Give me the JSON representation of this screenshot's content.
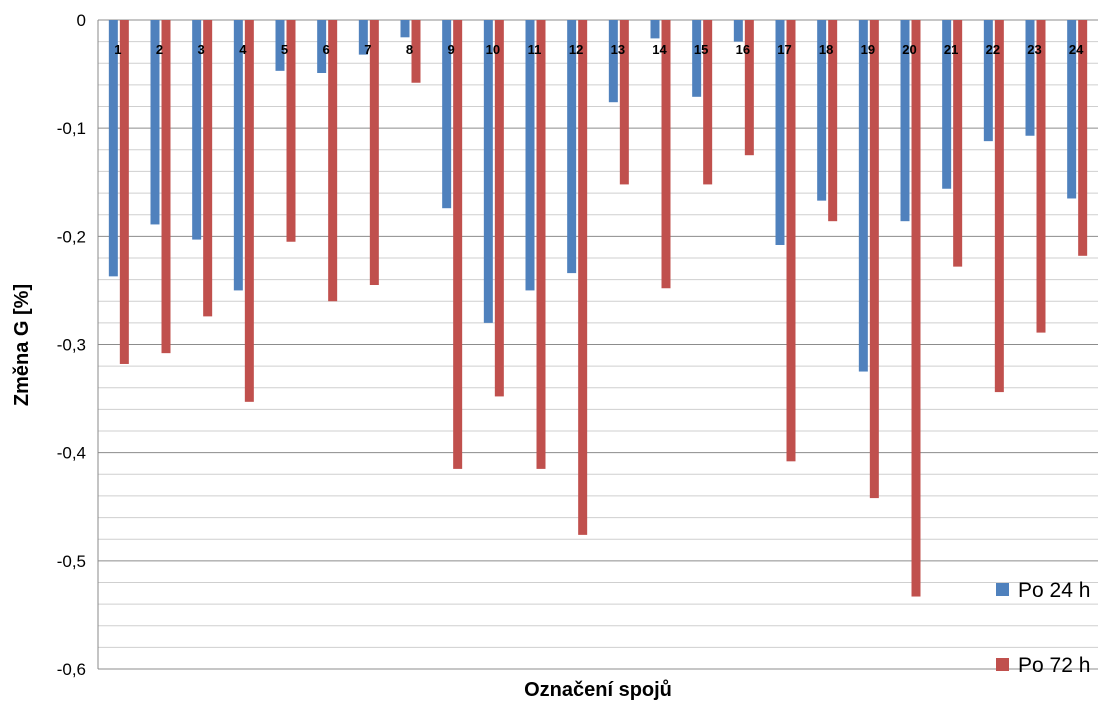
{
  "chart_data": {
    "type": "bar",
    "xlabel": "Označení spojů",
    "ylabel": "Změna G [%]",
    "ylim": [
      -0.6,
      0
    ],
    "yticks": [
      0,
      -0.1,
      -0.2,
      -0.3,
      -0.4,
      -0.5,
      -0.6
    ],
    "ytick_labels": [
      "0",
      "-0,1",
      "-0,2",
      "-0,3",
      "-0,4",
      "-0,5",
      "-0,6"
    ],
    "grid": true,
    "legend_position": "bottom-right",
    "categories": [
      "1",
      "2",
      "3",
      "4",
      "5",
      "6",
      "7",
      "8",
      "9",
      "10",
      "11",
      "12",
      "13",
      "14",
      "15",
      "16",
      "17",
      "18",
      "19",
      "20",
      "21",
      "22",
      "23",
      "24"
    ],
    "series": [
      {
        "name": "Po 24 h",
        "color": "#4F81BD",
        "values": [
          -0.237,
          -0.189,
          -0.203,
          -0.25,
          -0.047,
          -0.049,
          -0.032,
          -0.016,
          -0.174,
          -0.28,
          -0.25,
          -0.234,
          -0.076,
          -0.017,
          -0.071,
          -0.02,
          -0.208,
          -0.167,
          -0.325,
          -0.186,
          -0.156,
          -0.112,
          -0.107,
          -0.165
        ]
      },
      {
        "name": "Po 72 h",
        "color": "#C0504D",
        "values": [
          -0.318,
          -0.308,
          -0.274,
          -0.353,
          -0.205,
          -0.26,
          -0.245,
          -0.058,
          -0.415,
          -0.348,
          -0.415,
          -0.476,
          -0.152,
          -0.248,
          -0.152,
          -0.125,
          -0.408,
          -0.186,
          -0.442,
          -0.533,
          -0.228,
          -0.344,
          -0.289,
          -0.218
        ]
      }
    ]
  }
}
